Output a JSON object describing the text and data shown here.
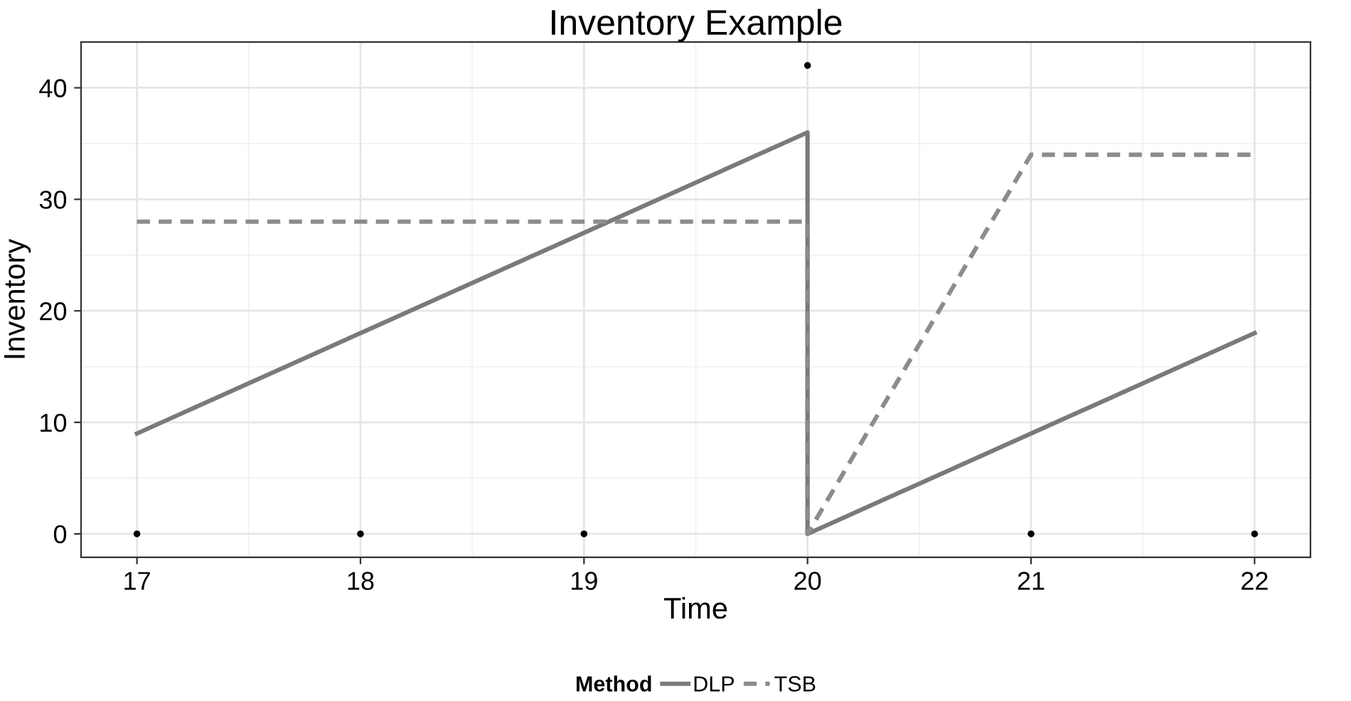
{
  "chart_data": {
    "type": "line",
    "title": "Inventory Example",
    "xlabel": "Time",
    "ylabel": "Inventory",
    "legend_title": "Method",
    "series": [
      {
        "name": "DLP",
        "color": "#7a7a7a",
        "line_style": "solid",
        "x": [
          17,
          20,
          20,
          22
        ],
        "values": [
          9,
          36,
          0,
          18
        ]
      },
      {
        "name": "TSB",
        "color": "#8c8c8c",
        "line_style": "dashed",
        "x": [
          17,
          20,
          20,
          21,
          22
        ],
        "values": [
          28,
          28,
          0,
          34,
          34
        ]
      },
      {
        "type": "scatter",
        "color": "#000000",
        "x": [
          17,
          18,
          19,
          20,
          21,
          22
        ],
        "values": [
          0,
          0,
          0,
          42,
          0,
          0
        ]
      }
    ],
    "xlim": [
      16.75,
      22.25
    ],
    "xticks": [
      17,
      18,
      19,
      20,
      21,
      22
    ],
    "ylim": [
      -2.1,
      44.1
    ],
    "yticks": [
      0,
      10,
      20,
      30,
      40
    ],
    "grid": true,
    "legend": "bottom",
    "marker": "none"
  }
}
